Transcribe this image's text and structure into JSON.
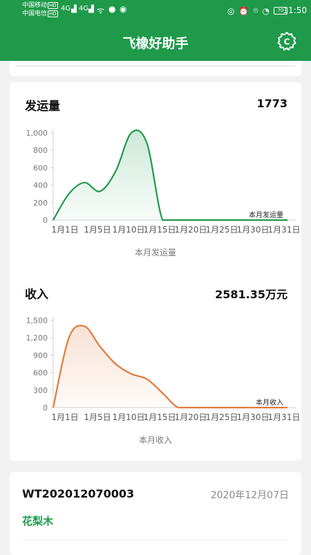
{
  "status_bar": {
    "carrier1": "中国移动",
    "carrier2": "中国电信",
    "hd": "HD",
    "net1": "4G",
    "net2": "4G",
    "battery": "70",
    "time": "11:50"
  },
  "header": {
    "title": "飞橡好助手",
    "settings_icon": "settings-c-icon"
  },
  "colors": {
    "brand": "#1e9a4a",
    "shipment_line": "#1e9a4a",
    "income_line": "#e0793a"
  },
  "shipment": {
    "title": "发运量",
    "total": "1773",
    "caption": "本月发运量",
    "chart_data": {
      "type": "area",
      "categories": [
        "1月1日",
        "1月5日",
        "1月10日",
        "1月15日",
        "1月20日",
        "1月25日",
        "1月30日",
        "1月31日"
      ],
      "x": [
        1,
        3,
        5,
        7,
        9,
        11,
        13,
        15,
        17,
        19,
        21,
        23,
        25,
        27,
        29,
        31
      ],
      "values": [
        0,
        300,
        430,
        330,
        560,
        1000,
        880,
        0,
        0,
        0,
        0,
        0,
        0,
        0,
        0,
        0
      ],
      "ylim": [
        0,
        1000
      ],
      "yticks": [
        "0",
        "200",
        "400",
        "600",
        "800",
        "1,000"
      ],
      "legend": "本月发运量",
      "legend_position": "bottom-right"
    }
  },
  "income": {
    "title": "收入",
    "total": "2581.35万元",
    "caption": "本月收入",
    "chart_data": {
      "type": "area",
      "categories": [
        "1月1日",
        "1月5日",
        "1月10日",
        "1月15日",
        "1月20日",
        "1月25日",
        "1月30日",
        "1月31日"
      ],
      "x": [
        1,
        3,
        5,
        7,
        9,
        11,
        13,
        15,
        17,
        19,
        21,
        23,
        25,
        27,
        29,
        31
      ],
      "values": [
        0,
        1200,
        1400,
        1050,
        750,
        580,
        490,
        250,
        0,
        0,
        0,
        0,
        0,
        0,
        0,
        0
      ],
      "ylim": [
        0,
        1500
      ],
      "yticks": [
        "0",
        "300",
        "600",
        "900",
        "1,200",
        "1,500"
      ],
      "legend": "本月收入",
      "legend_position": "bottom-right"
    }
  },
  "order": {
    "id": "WT202012070003",
    "date": "2020年12月07日",
    "wood": "花梨木"
  }
}
